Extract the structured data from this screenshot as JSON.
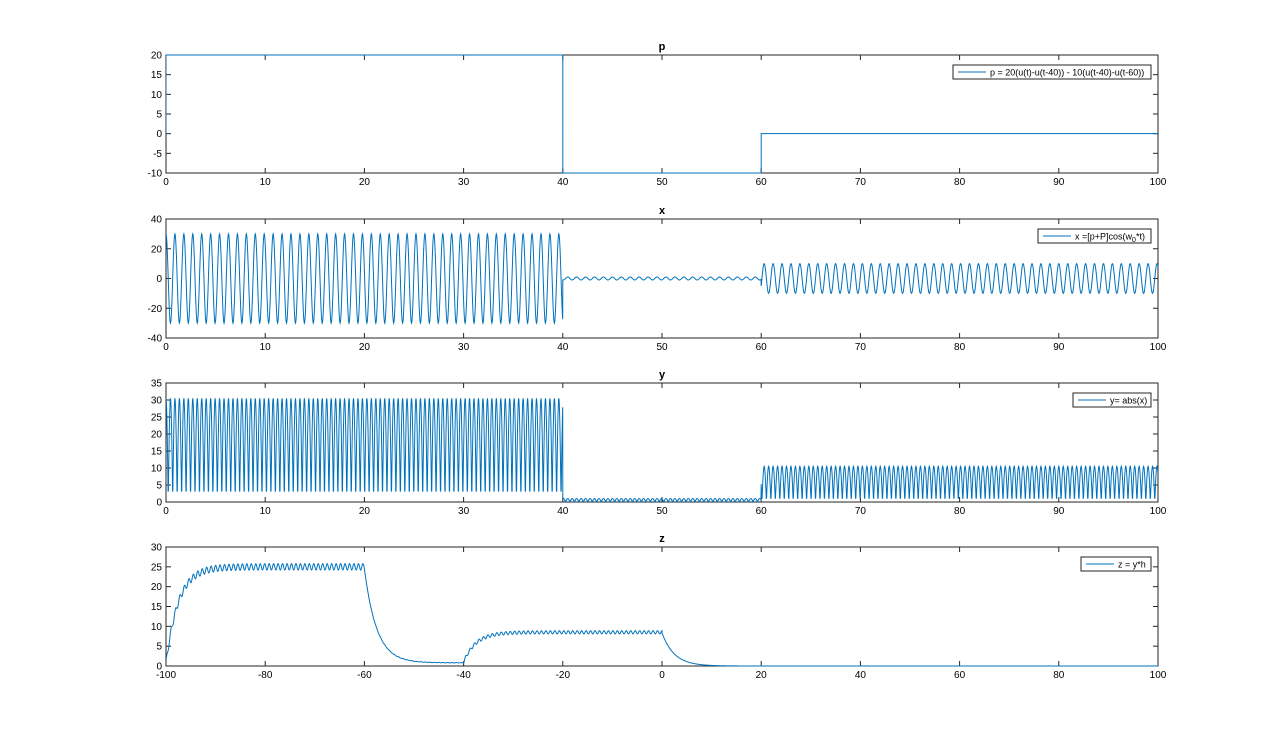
{
  "figure": {
    "line_color": "#0072BD",
    "axis_color": "#262626",
    "legend_edge_color": "#262626"
  },
  "chart_data": [
    {
      "id": "p",
      "type": "line",
      "title": "p",
      "xlabel": "",
      "ylabel": "",
      "xlim": [
        0,
        100
      ],
      "ylim": [
        -10,
        20
      ],
      "xticks": [
        0,
        10,
        20,
        30,
        40,
        50,
        60,
        70,
        80,
        90,
        100
      ],
      "yticks": [
        -10,
        -5,
        0,
        5,
        10,
        15,
        20
      ],
      "legend": "p = 20(u(t)-u(t-40)) - 10(u(t-40)-u(t-60))",
      "legend_location": "top-right",
      "series": [
        {
          "name": "p = 20(u(t)-u(t-40)) - 10(u(t-40)-u(t-60))",
          "kind": "piecewise",
          "x": [
            0,
            0,
            40,
            40,
            60,
            60,
            100
          ],
          "y": [
            0,
            20,
            20,
            -10,
            -10,
            0,
            0
          ]
        }
      ]
    },
    {
      "id": "x",
      "type": "line",
      "title": "x",
      "xlabel": "",
      "ylabel": "",
      "xlim": [
        0,
        100
      ],
      "ylim": [
        -40,
        40
      ],
      "xticks": [
        0,
        10,
        20,
        30,
        40,
        50,
        60,
        70,
        80,
        90,
        100
      ],
      "yticks": [
        -40,
        -20,
        0,
        20,
        40
      ],
      "legend": "x =[p+P]cos(w",
      "legend_sub": "0",
      "legend_tail": "*t)",
      "legend_location": "top-right",
      "series": [
        {
          "name": "x = [p+P]cos(w0*t)",
          "kind": "modulated_cosine",
          "segments": [
            {
              "from": 0,
              "to": 40,
              "amplitude": 30
            },
            {
              "from": 40,
              "to": 60,
              "amplitude": 1
            },
            {
              "from": 60,
              "to": 100,
              "amplitude": 10
            }
          ],
          "period": 0.9
        }
      ]
    },
    {
      "id": "y",
      "type": "line",
      "title": "y",
      "xlabel": "",
      "ylabel": "",
      "xlim": [
        0,
        100
      ],
      "ylim": [
        0,
        35
      ],
      "xticks": [
        0,
        10,
        20,
        30,
        40,
        50,
        60,
        70,
        80,
        90,
        100
      ],
      "yticks": [
        0,
        5,
        10,
        15,
        20,
        25,
        30,
        35
      ],
      "legend": "y= abs(x)",
      "legend_location": "top-right",
      "series": [
        {
          "name": "y = abs(x)",
          "kind": "rectified_cosine",
          "segments": [
            {
              "from": 0,
              "to": 40,
              "amplitude": 30.5
            },
            {
              "from": 40,
              "to": 60,
              "amplitude": 1
            },
            {
              "from": 60,
              "to": 100,
              "amplitude": 10.5
            }
          ],
          "period": 0.9
        }
      ]
    },
    {
      "id": "z",
      "type": "line",
      "title": "z",
      "xlabel": "",
      "ylabel": "",
      "xlim": [
        -100,
        100
      ],
      "ylim": [
        0,
        30
      ],
      "xticks": [
        -100,
        -80,
        -60,
        -40,
        -20,
        0,
        20,
        40,
        60,
        80,
        100
      ],
      "yticks": [
        0,
        5,
        10,
        15,
        20,
        25,
        30
      ],
      "legend": "z = y*h",
      "legend_location": "top-right",
      "series": [
        {
          "name": "z = y*h",
          "kind": "filtered_envelope",
          "segments": [
            {
              "from": -100,
              "to": -60,
              "level": 25,
              "ripple": 0.8
            },
            {
              "from": -60,
              "to": -40,
              "level": 0.8,
              "ripple": 0.05
            },
            {
              "from": -40,
              "to": 0,
              "level": 8.5,
              "ripple": 0.4
            },
            {
              "from": 0,
              "to": 100,
              "level": 0,
              "ripple": 0
            }
          ],
          "time_constant": 2.5,
          "period": 0.9
        }
      ]
    }
  ]
}
